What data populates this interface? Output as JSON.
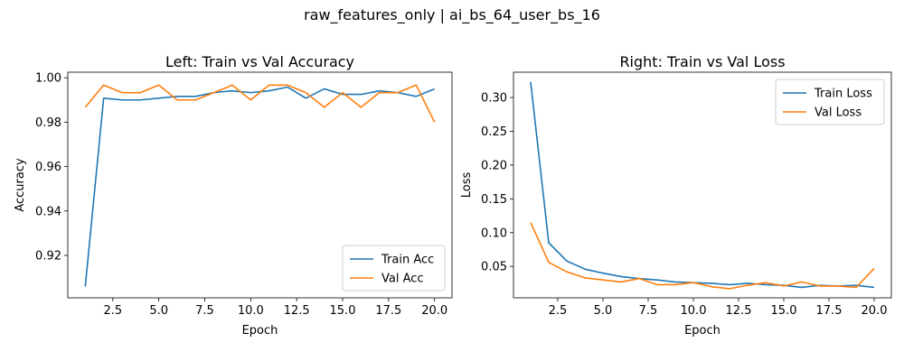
{
  "figure": {
    "suptitle": "raw_features_only | ai_bs_64_user_bs_16"
  },
  "colors": {
    "train": "#1f77b4",
    "val": "#ff7f0e",
    "axes": "#000000",
    "legend_border": "#cccccc"
  },
  "chart_data": [
    {
      "type": "line",
      "title": "Left: Train vs Val Accuracy",
      "xlabel": "Epoch",
      "ylabel": "Accuracy",
      "xlim": [
        0.05,
        20.95
      ],
      "ylim": [
        0.9009,
        1.0025
      ],
      "xticks": [
        2.5,
        5.0,
        7.5,
        10.0,
        12.5,
        15.0,
        17.5,
        20.0
      ],
      "xtick_labels": [
        "2.5",
        "5.0",
        "7.5",
        "10.0",
        "12.5",
        "15.0",
        "17.5",
        "20.0"
      ],
      "yticks": [
        0.92,
        0.94,
        0.96,
        0.98,
        1.0
      ],
      "ytick_labels": [
        "0.92",
        "0.94",
        "0.96",
        "0.98",
        "1.00"
      ],
      "grid": false,
      "legend_position": "lower-right",
      "x": [
        1,
        2,
        3,
        4,
        5,
        6,
        7,
        8,
        9,
        10,
        11,
        12,
        13,
        14,
        15,
        16,
        17,
        18,
        19,
        20
      ],
      "series": [
        {
          "name": "Train Acc",
          "values": [
            0.906,
            0.9908,
            0.99,
            0.99,
            0.9908,
            0.9916,
            0.9916,
            0.9933,
            0.9941,
            0.9933,
            0.9941,
            0.9958,
            0.9908,
            0.995,
            0.9925,
            0.9925,
            0.9941,
            0.9933,
            0.9916,
            0.995
          ]
        },
        {
          "name": "Val Acc",
          "values": [
            0.9867,
            0.9967,
            0.9933,
            0.9933,
            0.9967,
            0.99,
            0.99,
            0.9933,
            0.9967,
            0.99,
            0.9967,
            0.9967,
            0.9933,
            0.9867,
            0.9933,
            0.9867,
            0.9933,
            0.9933,
            0.9967,
            0.98
          ]
        }
      ]
    },
    {
      "type": "line",
      "title": "Right: Train vs Val Loss",
      "xlabel": "Epoch",
      "ylabel": "Loss",
      "xlim": [
        0.05,
        20.95
      ],
      "ylim": [
        0.0035,
        0.3375
      ],
      "xticks": [
        2.5,
        5.0,
        7.5,
        10.0,
        12.5,
        15.0,
        17.5,
        20.0
      ],
      "xtick_labels": [
        "2.5",
        "5.0",
        "7.5",
        "10.0",
        "12.5",
        "15.0",
        "17.5",
        "20.0"
      ],
      "yticks": [
        0.05,
        0.1,
        0.15,
        0.2,
        0.25,
        0.3
      ],
      "ytick_labels": [
        "0.05",
        "0.10",
        "0.15",
        "0.20",
        "0.25",
        "0.30"
      ],
      "grid": false,
      "legend_position": "upper-right",
      "x": [
        1,
        2,
        3,
        4,
        5,
        6,
        7,
        8,
        9,
        10,
        11,
        12,
        13,
        14,
        15,
        16,
        17,
        18,
        19,
        20
      ],
      "series": [
        {
          "name": "Train Loss",
          "values": [
            0.323,
            0.085,
            0.058,
            0.046,
            0.04,
            0.035,
            0.032,
            0.03,
            0.027,
            0.026,
            0.025,
            0.023,
            0.025,
            0.023,
            0.022,
            0.019,
            0.022,
            0.021,
            0.022,
            0.019
          ]
        },
        {
          "name": "Val Loss",
          "values": [
            0.115,
            0.056,
            0.042,
            0.033,
            0.03,
            0.027,
            0.032,
            0.023,
            0.023,
            0.026,
            0.02,
            0.017,
            0.022,
            0.026,
            0.021,
            0.027,
            0.021,
            0.021,
            0.019,
            0.047
          ]
        }
      ]
    }
  ]
}
